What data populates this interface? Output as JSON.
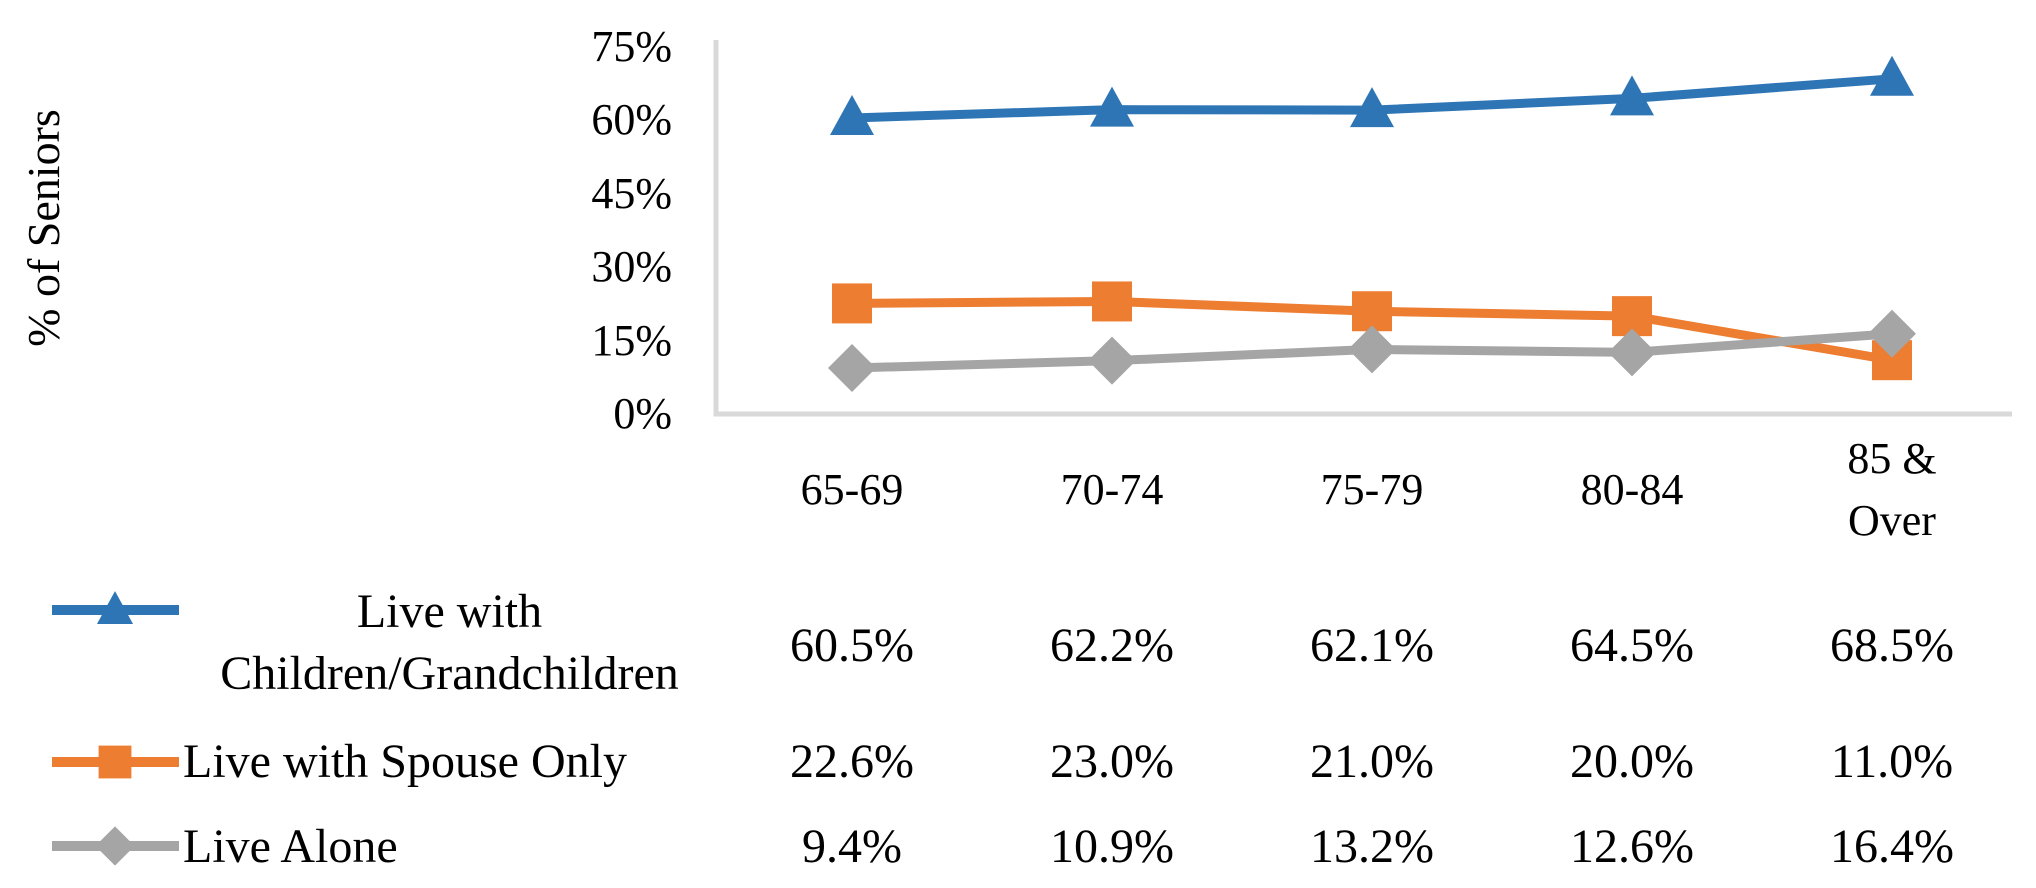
{
  "figure": {
    "background": "#ffffff",
    "text_color": "#000000",
    "axis_color": "#d9d9d9"
  },
  "chart_data": {
    "type": "line",
    "title": "",
    "xlabel": "",
    "ylabel": "% of Seniors",
    "ylim": [
      0,
      75
    ],
    "ytick_step": 15,
    "yticks": [
      "0%",
      "15%",
      "30%",
      "45%",
      "60%",
      "75%"
    ],
    "grid": false,
    "legend_position": "bottom-left table",
    "categories": [
      "65-69",
      "70-74",
      "75-79",
      "80-84",
      "85 & Over"
    ],
    "category_display": [
      "65-69",
      "70-74",
      "75-79",
      "80-84",
      "85 &\nOver"
    ],
    "series": [
      {
        "name": "Live with Children/Grandchildren",
        "marker": "triangle",
        "color": "#2E75B6",
        "values": [
          60.5,
          62.2,
          62.1,
          64.5,
          68.5
        ],
        "labels": [
          "60.5%",
          "62.2%",
          "62.1%",
          "64.5%",
          "68.5%"
        ]
      },
      {
        "name": "Live with Spouse Only",
        "marker": "square",
        "color": "#ED7D31",
        "values": [
          22.6,
          23.0,
          21.0,
          20.0,
          11.0
        ],
        "labels": [
          "22.6%",
          "23.0%",
          "21.0%",
          "20.0%",
          "11.0%"
        ]
      },
      {
        "name": "Live Alone",
        "marker": "diamond",
        "color": "#A5A5A5",
        "values": [
          9.4,
          10.9,
          13.2,
          12.6,
          16.4
        ],
        "labels": [
          "9.4%",
          "10.9%",
          "13.2%",
          "12.6%",
          "16.4%"
        ]
      }
    ]
  },
  "legend": {
    "items": [
      {
        "lines": "Live with\nChildren/Grandchildren",
        "align": "center"
      },
      {
        "lines": "Live with Spouse Only",
        "align": "left"
      },
      {
        "lines": "Live Alone",
        "align": "left"
      }
    ]
  }
}
